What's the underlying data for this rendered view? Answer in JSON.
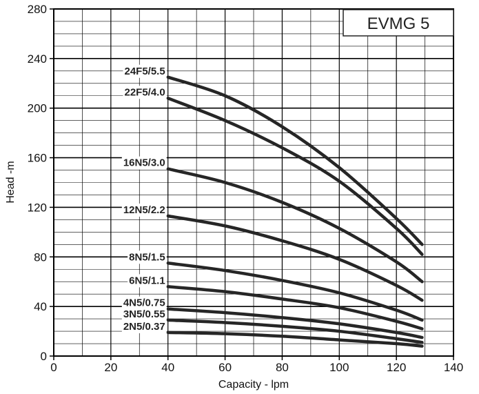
{
  "chart_data": {
    "type": "line",
    "title": "EVMG 5",
    "xlabel": "Capacity - lpm",
    "ylabel": "Head -m",
    "xlim": [
      0,
      140
    ],
    "ylim": [
      0,
      280
    ],
    "x_ticks": [
      "0",
      "20",
      "40",
      "60",
      "80",
      "100",
      "120",
      "140"
    ],
    "y_ticks": [
      "0",
      "40",
      "80",
      "120",
      "160",
      "200",
      "240",
      "280"
    ],
    "grid": true,
    "x": [
      40,
      60,
      80,
      100,
      120,
      129
    ],
    "series": [
      {
        "name": "24F5/5.5",
        "values": [
          225,
          210,
          185,
          152,
          111,
          90
        ]
      },
      {
        "name": "22F5/4.0",
        "values": [
          208,
          190,
          168,
          141,
          103,
          82
        ]
      },
      {
        "name": "16N5/3.0",
        "values": [
          151,
          140,
          124,
          103,
          76,
          60
        ]
      },
      {
        "name": "12N5/2.2",
        "values": [
          113,
          105,
          93,
          78,
          57,
          45
        ]
      },
      {
        "name": "8N5/1.5",
        "values": [
          75,
          69,
          61,
          51,
          37,
          29
        ]
      },
      {
        "name": "6N5/1.1",
        "values": [
          56,
          52,
          46,
          39,
          28,
          22
        ]
      },
      {
        "name": "4N5/0.75",
        "values": [
          38,
          35,
          31,
          26,
          19,
          15
        ]
      },
      {
        "name": "3N5/0.55",
        "values": [
          29,
          27,
          24,
          20,
          14,
          11
        ]
      },
      {
        "name": "2N5/0.37",
        "values": [
          19,
          18,
          16,
          13,
          10,
          8
        ]
      }
    ]
  }
}
